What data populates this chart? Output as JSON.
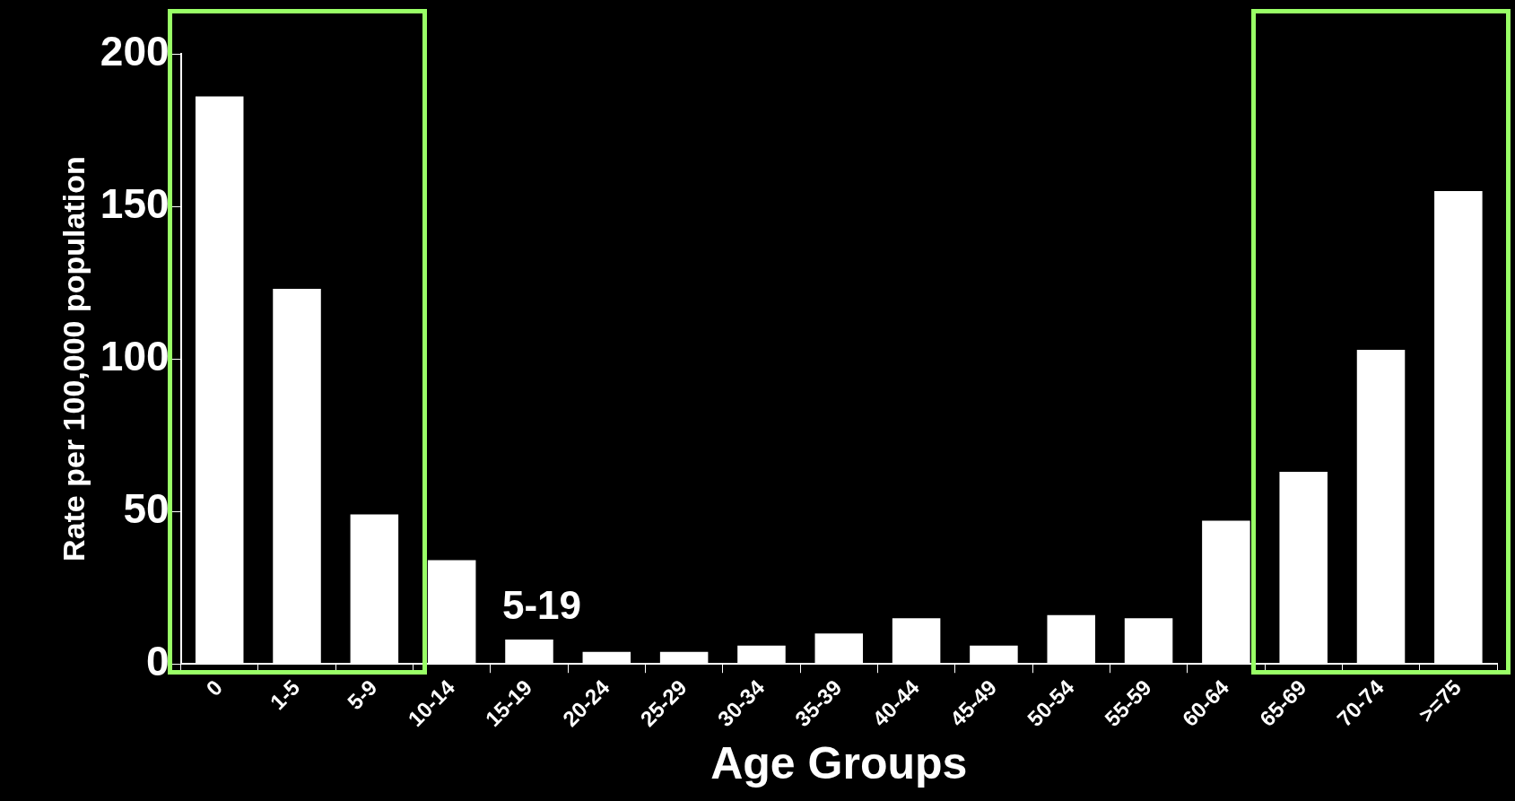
{
  "chart_data": {
    "type": "bar",
    "xlabel": "Age Groups",
    "ylabel": "Rate per 100,000 population",
    "categories": [
      "0",
      "1-5",
      "5-9",
      "10-14",
      "15-19",
      "20-24",
      "25-29",
      "30-34",
      "35-39",
      "40-44",
      "45-49",
      "50-54",
      "55-59",
      "60-64",
      "65-69",
      "70-74",
      ">=75"
    ],
    "values": [
      186,
      123,
      49,
      34,
      8,
      4,
      4,
      6,
      10,
      15,
      6,
      16,
      15,
      47,
      63,
      103,
      155
    ],
    "color": "#ffffff",
    "ylim": [
      0,
      200
    ],
    "yticks": [
      0,
      50,
      100,
      150,
      200
    ],
    "grid": false,
    "legend": false,
    "annotations": [
      "5-19"
    ]
  }
}
